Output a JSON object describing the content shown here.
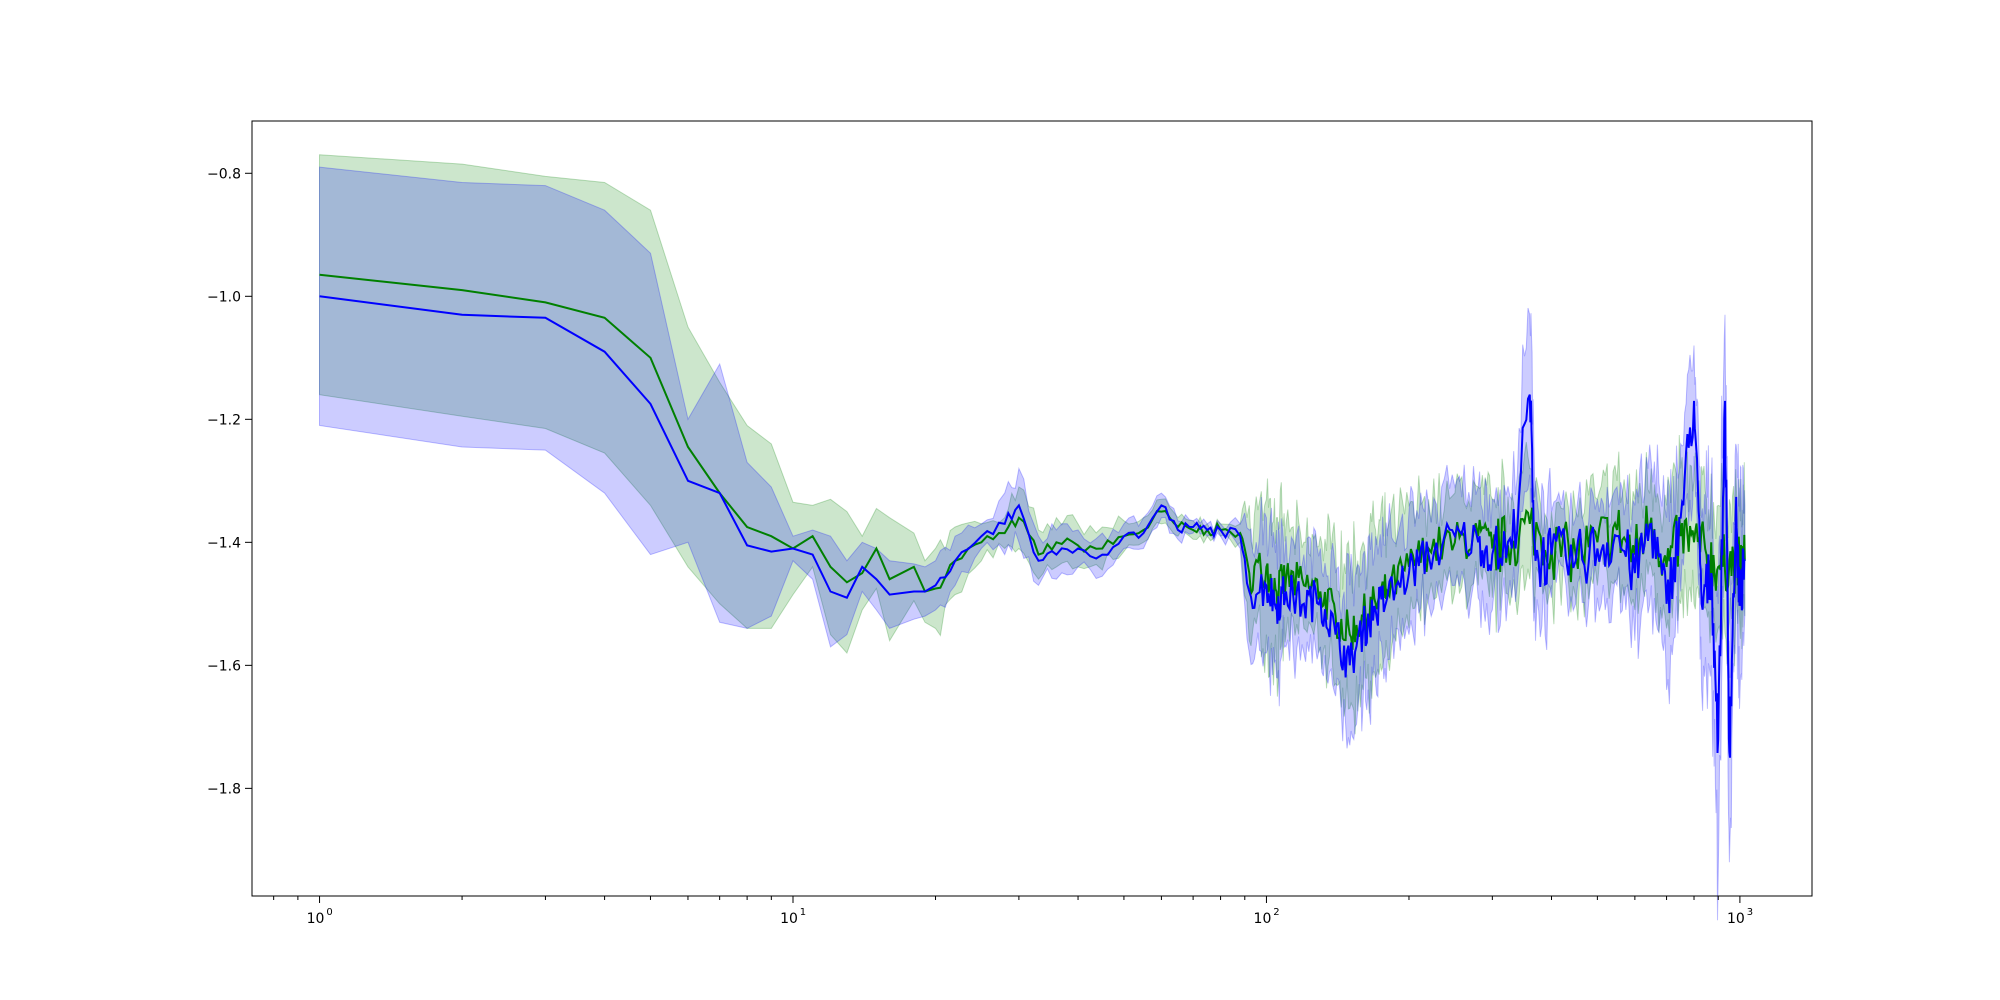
{
  "chart_data": {
    "type": "line",
    "title": "",
    "xlabel": "",
    "ylabel": "",
    "xscale": "log",
    "xlim": [
      0.72,
      1420
    ],
    "ylim": [
      -1.975,
      -0.715
    ],
    "grid": false,
    "legend": "none",
    "x_ticks": [
      {
        "base": "10",
        "exp": "0",
        "value": 1
      },
      {
        "base": "10",
        "exp": "1",
        "value": 10
      },
      {
        "base": "10",
        "exp": "2",
        "value": 100
      },
      {
        "base": "10",
        "exp": "3",
        "value": 1000
      }
    ],
    "y_ticks": [
      {
        "label": "−0.8",
        "value": -0.8
      },
      {
        "label": "−1.0",
        "value": -1.0
      },
      {
        "label": "−1.2",
        "value": -1.2
      },
      {
        "label": "−1.4",
        "value": -1.4
      },
      {
        "label": "−1.6",
        "value": -1.6
      },
      {
        "label": "−1.8",
        "value": -1.8
      }
    ],
    "colors": {
      "green": "#008000",
      "blue": "#0000ff",
      "green_band": "#008000",
      "blue_band": "#0000ff",
      "band_opacity": 0.2
    },
    "series": [
      {
        "color": "green",
        "points": [
          [
            1,
            -0.965,
            -0.77
          ],
          [
            2,
            -0.99,
            -0.785
          ],
          [
            3,
            -1.01,
            -0.805
          ],
          [
            4,
            -1.035,
            -0.815
          ],
          [
            5,
            -1.1,
            -0.86
          ],
          [
            6,
            -1.245,
            -1.05
          ],
          [
            7,
            -1.32,
            -1.14
          ],
          [
            8,
            -1.375,
            -1.21
          ],
          [
            9,
            -1.39,
            -1.24
          ],
          [
            10,
            -1.41,
            -1.335
          ],
          [
            11,
            -1.39,
            -1.34
          ],
          [
            12,
            -1.44,
            -1.33
          ],
          [
            13,
            -1.465,
            -1.35
          ],
          [
            14,
            -1.45,
            -1.39
          ],
          [
            15,
            -1.41,
            -1.345
          ],
          [
            16,
            -1.46,
            -1.36
          ],
          [
            18,
            -1.44,
            -1.385
          ],
          [
            19,
            -1.48,
            -1.43
          ],
          [
            20,
            -1.475,
            -1.41
          ],
          [
            22,
            -1.43,
            -1.375
          ],
          [
            25,
            -1.4,
            -1.37
          ],
          [
            28,
            -1.385,
            -1.36
          ],
          [
            30,
            -1.36,
            -1.31
          ],
          [
            33,
            -1.42,
            -1.38
          ],
          [
            36,
            -1.4,
            -1.36
          ],
          [
            40,
            -1.405,
            -1.37
          ],
          [
            45,
            -1.41,
            -1.375
          ],
          [
            50,
            -1.39,
            -1.365
          ],
          [
            55,
            -1.38,
            -1.36
          ],
          [
            60,
            -1.35,
            -1.33
          ],
          [
            65,
            -1.375,
            -1.36
          ],
          [
            70,
            -1.38,
            -1.365
          ],
          [
            75,
            -1.38,
            -1.37
          ],
          [
            80,
            -1.38,
            -1.37
          ],
          [
            88,
            -1.385,
            -1.37
          ],
          [
            92,
            -1.45,
            -1.34
          ],
          [
            100,
            -1.44,
            -1.33
          ],
          [
            105,
            -1.48,
            -1.36
          ],
          [
            110,
            -1.46,
            -1.37
          ],
          [
            120,
            -1.47,
            -1.4
          ],
          [
            130,
            -1.48,
            -1.39
          ],
          [
            140,
            -1.52,
            -1.41
          ],
          [
            150,
            -1.55,
            -1.43
          ],
          [
            160,
            -1.52,
            -1.4
          ],
          [
            170,
            -1.5,
            -1.38
          ],
          [
            180,
            -1.48,
            -1.38
          ],
          [
            200,
            -1.44,
            -1.34
          ],
          [
            220,
            -1.41,
            -1.33
          ],
          [
            250,
            -1.4,
            -1.32
          ],
          [
            280,
            -1.39,
            -1.31
          ],
          [
            300,
            -1.41,
            -1.33
          ],
          [
            330,
            -1.4,
            -1.32
          ],
          [
            360,
            -1.37,
            -1.28
          ],
          [
            400,
            -1.41,
            -1.35
          ],
          [
            450,
            -1.42,
            -1.35
          ],
          [
            500,
            -1.4,
            -1.33
          ],
          [
            550,
            -1.38,
            -1.3
          ],
          [
            600,
            -1.42,
            -1.33
          ],
          [
            650,
            -1.36,
            -1.28
          ],
          [
            700,
            -1.44,
            -1.34
          ],
          [
            750,
            -1.39,
            -1.28
          ],
          [
            800,
            -1.4,
            -1.3
          ],
          [
            850,
            -1.42,
            -1.33
          ],
          [
            900,
            -1.44,
            -1.34
          ],
          [
            950,
            -1.43,
            -1.33
          ],
          [
            1000,
            -1.44,
            -1.34
          ],
          [
            1024,
            -1.43,
            -1.34
          ]
        ]
      },
      {
        "color": "blue",
        "points": [
          [
            1,
            -1.0,
            -0.79
          ],
          [
            2,
            -1.03,
            -0.815
          ],
          [
            3,
            -1.035,
            -0.82
          ],
          [
            4,
            -1.09,
            -0.86
          ],
          [
            5,
            -1.175,
            -0.93
          ],
          [
            6,
            -1.3,
            -1.2
          ],
          [
            7,
            -1.32,
            -1.11
          ],
          [
            8,
            -1.405,
            -1.27
          ],
          [
            9,
            -1.415,
            -1.31
          ],
          [
            10,
            -1.41,
            -1.39
          ],
          [
            11,
            -1.42,
            -1.38
          ],
          [
            12,
            -1.48,
            -1.39
          ],
          [
            13,
            -1.49,
            -1.43
          ],
          [
            14,
            -1.44,
            -1.4
          ],
          [
            15,
            -1.46,
            -1.41
          ],
          [
            16,
            -1.485,
            -1.43
          ],
          [
            18,
            -1.48,
            -1.435
          ],
          [
            19,
            -1.48,
            -1.44
          ],
          [
            20,
            -1.47,
            -1.43
          ],
          [
            22,
            -1.43,
            -1.39
          ],
          [
            25,
            -1.39,
            -1.37
          ],
          [
            28,
            -1.37,
            -1.32
          ],
          [
            30,
            -1.34,
            -1.28
          ],
          [
            33,
            -1.43,
            -1.39
          ],
          [
            36,
            -1.42,
            -1.38
          ],
          [
            40,
            -1.41,
            -1.38
          ],
          [
            45,
            -1.42,
            -1.385
          ],
          [
            50,
            -1.39,
            -1.37
          ],
          [
            55,
            -1.385,
            -1.36
          ],
          [
            60,
            -1.34,
            -1.32
          ],
          [
            65,
            -1.38,
            -1.365
          ],
          [
            70,
            -1.375,
            -1.365
          ],
          [
            75,
            -1.38,
            -1.37
          ],
          [
            80,
            -1.38,
            -1.37
          ],
          [
            88,
            -1.39,
            -1.37
          ],
          [
            92,
            -1.48,
            -1.38
          ],
          [
            100,
            -1.47,
            -1.36
          ],
          [
            105,
            -1.5,
            -1.38
          ],
          [
            110,
            -1.48,
            -1.39
          ],
          [
            120,
            -1.5,
            -1.42
          ],
          [
            130,
            -1.49,
            -1.41
          ],
          [
            140,
            -1.55,
            -1.45
          ],
          [
            150,
            -1.6,
            -1.47
          ],
          [
            160,
            -1.54,
            -1.42
          ],
          [
            170,
            -1.51,
            -1.39
          ],
          [
            180,
            -1.49,
            -1.39
          ],
          [
            200,
            -1.45,
            -1.35
          ],
          [
            220,
            -1.42,
            -1.34
          ],
          [
            250,
            -1.39,
            -1.31
          ],
          [
            280,
            -1.4,
            -1.31
          ],
          [
            300,
            -1.42,
            -1.33
          ],
          [
            330,
            -1.41,
            -1.33
          ],
          [
            360,
            -1.16,
            -1.03
          ],
          [
            370,
            -1.43,
            -1.3
          ],
          [
            400,
            -1.42,
            -1.35
          ],
          [
            450,
            -1.43,
            -1.36
          ],
          [
            500,
            -1.41,
            -1.33
          ],
          [
            550,
            -1.39,
            -1.31
          ],
          [
            600,
            -1.45,
            -1.34
          ],
          [
            650,
            -1.37,
            -1.27
          ],
          [
            700,
            -1.5,
            -1.36
          ],
          [
            750,
            -1.36,
            -1.24
          ],
          [
            800,
            -1.17,
            -1.08
          ],
          [
            830,
            -1.5,
            -1.36
          ],
          [
            870,
            -1.45,
            -1.3
          ],
          [
            900,
            -1.72,
            -1.5
          ],
          [
            930,
            -1.17,
            -1.03
          ],
          [
            950,
            -1.74,
            -1.56
          ],
          [
            980,
            -1.36,
            -1.24
          ],
          [
            1000,
            -1.5,
            -1.35
          ],
          [
            1024,
            -1.43,
            -1.34
          ]
        ]
      }
    ]
  }
}
